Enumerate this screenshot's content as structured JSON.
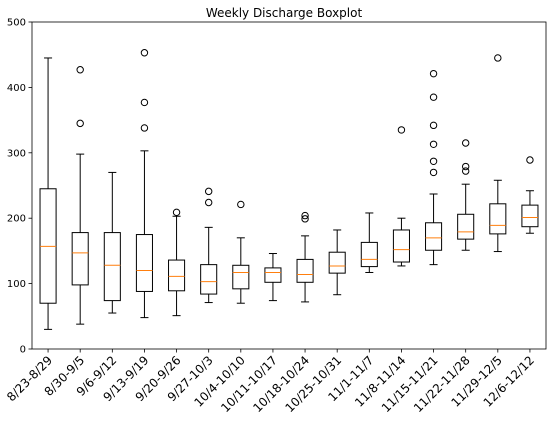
{
  "chart_data": {
    "type": "boxplot",
    "title": "Weekly Discharge Boxplot",
    "xlabel": "",
    "ylabel": "",
    "ylim": [
      0,
      500
    ],
    "yticks": [
      0,
      100,
      200,
      300,
      400,
      500
    ],
    "grid": false,
    "colors": {
      "box": "#000000",
      "median": "#ff7f0e"
    },
    "categories": [
      "8/23-8/29",
      "8/30-9/5",
      "9/6-9/12",
      "9/13-9/19",
      "9/20-9/26",
      "9/27-10/3",
      "10/4-10/10",
      "10/11-10/17",
      "10/18-10/24",
      "10/25-10/31",
      "11/1-11/7",
      "11/8-11/14",
      "11/15-11/21",
      "11/22-11/28",
      "11/29-12/5",
      "12/6-12/12"
    ],
    "boxes": [
      {
        "whislo": 30,
        "q1": 70,
        "med": 157,
        "q3": 245,
        "whishi": 445,
        "fliers": []
      },
      {
        "whislo": 38,
        "q1": 98,
        "med": 147,
        "q3": 178,
        "whishi": 298,
        "fliers": [
          345,
          427
        ]
      },
      {
        "whislo": 55,
        "q1": 74,
        "med": 128,
        "q3": 178,
        "whishi": 270,
        "fliers": []
      },
      {
        "whislo": 48,
        "q1": 88,
        "med": 120,
        "q3": 175,
        "whishi": 303,
        "fliers": [
          338,
          377,
          453
        ]
      },
      {
        "whislo": 51,
        "q1": 89,
        "med": 111,
        "q3": 136,
        "whishi": 203,
        "fliers": [
          209
        ]
      },
      {
        "whislo": 71,
        "q1": 84,
        "med": 103,
        "q3": 129,
        "whishi": 186,
        "fliers": [
          224,
          241
        ]
      },
      {
        "whislo": 70,
        "q1": 92,
        "med": 117,
        "q3": 128,
        "whishi": 170,
        "fliers": [
          221
        ]
      },
      {
        "whislo": 74,
        "q1": 102,
        "med": 117,
        "q3": 124,
        "whishi": 146,
        "fliers": []
      },
      {
        "whislo": 72,
        "q1": 102,
        "med": 114,
        "q3": 137,
        "whishi": 173,
        "fliers": [
          199,
          204
        ]
      },
      {
        "whislo": 83,
        "q1": 116,
        "med": 127,
        "q3": 148,
        "whishi": 182,
        "fliers": []
      },
      {
        "whislo": 117,
        "q1": 126,
        "med": 137,
        "q3": 163,
        "whishi": 208,
        "fliers": []
      },
      {
        "whislo": 127,
        "q1": 133,
        "med": 152,
        "q3": 182,
        "whishi": 200,
        "fliers": [
          335
        ]
      },
      {
        "whislo": 129,
        "q1": 151,
        "med": 170,
        "q3": 193,
        "whishi": 237,
        "fliers": [
          270,
          287,
          313,
          342,
          385,
          421
        ]
      },
      {
        "whislo": 151,
        "q1": 168,
        "med": 179,
        "q3": 206,
        "whishi": 252,
        "fliers": [
          272,
          279,
          315
        ]
      },
      {
        "whislo": 149,
        "q1": 176,
        "med": 189,
        "q3": 222,
        "whishi": 258,
        "fliers": [
          445
        ]
      },
      {
        "whislo": 177,
        "q1": 187,
        "med": 201,
        "q3": 220,
        "whishi": 242,
        "fliers": [
          289
        ]
      }
    ]
  }
}
